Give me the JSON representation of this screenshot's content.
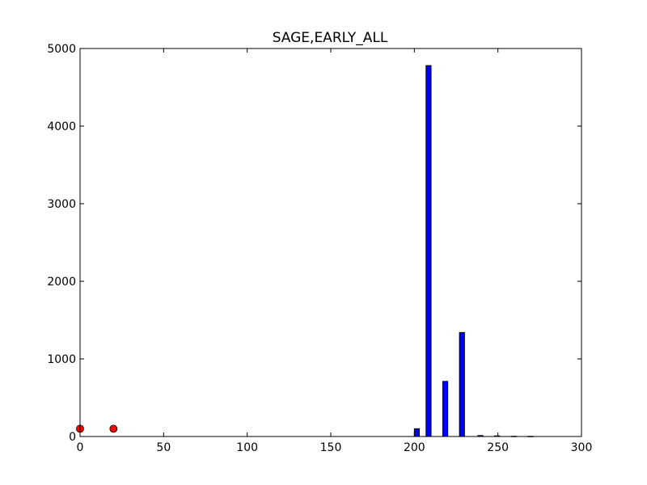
{
  "chart_data": {
    "type": "bar",
    "title": "SAGE,EARLY_ALL",
    "xlabel": "",
    "ylabel": "",
    "xlim": [
      0,
      300
    ],
    "ylim": [
      0,
      5000
    ],
    "xticks": [
      0,
      50,
      100,
      150,
      200,
      250,
      300
    ],
    "yticks": [
      0,
      1000,
      2000,
      3000,
      4000,
      5000
    ],
    "grid": false,
    "bar_color": "#0000ff",
    "bar_width": 3,
    "bars": [
      {
        "x": 200,
        "value": 100
      },
      {
        "x": 207,
        "value": 4780
      },
      {
        "x": 217,
        "value": 710
      },
      {
        "x": 227,
        "value": 1340
      },
      {
        "x": 238,
        "value": 12
      },
      {
        "x": 248,
        "value": 8
      },
      {
        "x": 258,
        "value": 3
      },
      {
        "x": 268,
        "value": 2
      }
    ],
    "scatter_color": "#ff0000",
    "scatter": [
      {
        "x": 0,
        "y": 100
      },
      {
        "x": 20,
        "y": 100
      }
    ]
  }
}
